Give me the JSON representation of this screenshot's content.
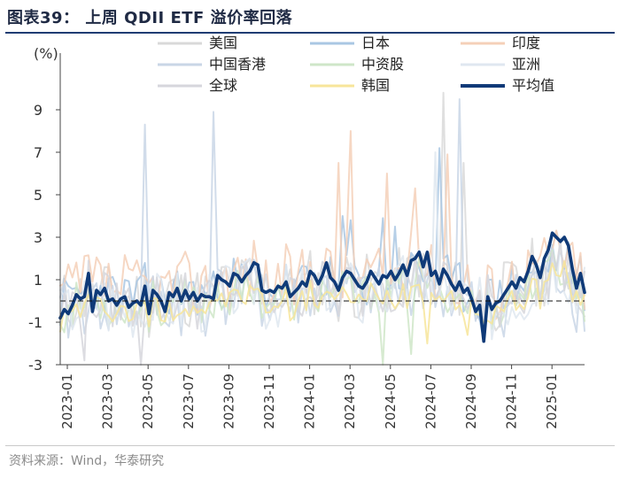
{
  "title": "图表39：  上周 QDII ETF 溢价率回落",
  "source": "资料来源：Wind，华泰研究",
  "chart_data": {
    "type": "line",
    "title": "上周 QDII ETF 溢价率回落",
    "ylabel": "(%)",
    "xlabel": "",
    "ylim": [
      -3,
      10
    ],
    "yticks": [
      9,
      7,
      5,
      3,
      1,
      -1,
      -3
    ],
    "xticks": [
      "2023-01",
      "2023-03",
      "2023-05",
      "2023-07",
      "2023-09",
      "2023-11",
      "2024-01",
      "2024-03",
      "2024-05",
      "2024-07",
      "2024-09",
      "2024-11",
      "2025-01"
    ],
    "reference_line": 0,
    "series": [
      {
        "name": "美国",
        "color": "#d9d9d9",
        "width": 2,
        "seed": 11,
        "base": 0.5,
        "amp": 1.6,
        "spikes": [
          [
            95,
            9.8
          ],
          [
            100,
            6.5
          ]
        ]
      },
      {
        "name": "日本",
        "color": "#a9c7e3",
        "width": 2,
        "seed": 23,
        "base": 0.6,
        "amp": 1.2,
        "spikes": [
          [
            70,
            4.0
          ],
          [
            72,
            3.8
          ],
          [
            80,
            3.9
          ],
          [
            83,
            3.5
          ],
          [
            94,
            7.2
          ]
        ]
      },
      {
        "name": "印度",
        "color": "#f5d0b8",
        "width": 2,
        "seed": 37,
        "base": 1.0,
        "amp": 1.5,
        "spikes": [
          [
            69,
            6.5
          ],
          [
            72,
            8.0
          ],
          [
            81,
            6.0
          ],
          [
            88,
            5.3
          ],
          [
            96,
            6.9
          ]
        ]
      },
      {
        "name": "中国香港",
        "color": "#c9d6e6",
        "width": 2,
        "seed": 41,
        "base": 0.0,
        "amp": 1.5,
        "spikes": [
          [
            21,
            8.3
          ],
          [
            38,
            8.9
          ],
          [
            99,
            9.5
          ]
        ]
      },
      {
        "name": "中资股",
        "color": "#cfe6c8",
        "width": 2,
        "seed": 53,
        "base": 0.1,
        "amp": 1.0,
        "spikes": [
          [
            80,
            -3.0
          ],
          [
            87,
            -2.5
          ]
        ]
      },
      {
        "name": "亚洲",
        "color": "#dfe7f0",
        "width": 2,
        "seed": 67,
        "base": 0.2,
        "amp": 1.5,
        "spikes": [
          [
            93,
            7.0
          ]
        ]
      },
      {
        "name": "全球",
        "color": "#d6d6dc",
        "width": 2,
        "seed": 79,
        "base": 0.3,
        "amp": 1.3,
        "spikes": [
          [
            6,
            -2.8
          ],
          [
            20,
            -3.0
          ]
        ]
      },
      {
        "name": "韩国",
        "color": "#f7e59a",
        "width": 2,
        "seed": 97,
        "base": -0.1,
        "amp": 0.6,
        "spikes": [
          [
            91,
            -2.0
          ],
          [
            101,
            -1.6
          ]
        ]
      },
      {
        "name": "平均值",
        "color": "#0f3a78",
        "width": 3.6,
        "values": [
          -0.8,
          -0.4,
          -0.6,
          -0.2,
          0.3,
          0.1,
          0.2,
          1.3,
          -0.5,
          0.5,
          0.3,
          0.6,
          0.0,
          0.1,
          -0.2,
          0.1,
          0.2,
          -0.3,
          -0.1,
          0.0,
          -0.2,
          0.7,
          -0.6,
          0.5,
          0.3,
          0.0,
          -0.5,
          0.4,
          0.2,
          0.6,
          0.0,
          0.5,
          0.1,
          0.4,
          0.0,
          0.3,
          0.2,
          0.2,
          0.1,
          1.2,
          1.0,
          0.9,
          0.7,
          1.3,
          1.2,
          0.9,
          1.2,
          1.4,
          1.8,
          1.7,
          0.5,
          0.4,
          0.5,
          0.4,
          0.7,
          0.6,
          0.9,
          0.2,
          0.4,
          0.6,
          0.9,
          0.7,
          1.4,
          1.2,
          0.8,
          1.2,
          1.8,
          1.1,
          0.9,
          0.5,
          1.1,
          1.4,
          1.3,
          1.0,
          0.7,
          0.6,
          0.9,
          1.4,
          1.1,
          0.8,
          1.2,
          1.1,
          1.4,
          1.0,
          1.3,
          1.7,
          1.2,
          1.9,
          2.0,
          2.3,
          1.6,
          2.3,
          1.2,
          1.4,
          0.8,
          1.5,
          1.2,
          0.8,
          0.5,
          0.9,
          0.4,
          0.6,
          0.1,
          -0.5,
          -0.2,
          -1.9,
          0.2,
          -0.4,
          -0.1,
          0.0,
          0.3,
          0.6,
          0.9,
          0.6,
          1.1,
          0.9,
          1.4,
          2.1,
          1.7,
          1.1,
          2.0,
          2.4,
          3.2,
          3.0,
          2.8,
          3.0,
          2.6,
          1.5,
          0.6,
          1.3,
          0.4
        ]
      }
    ],
    "legend_position": "top"
  }
}
